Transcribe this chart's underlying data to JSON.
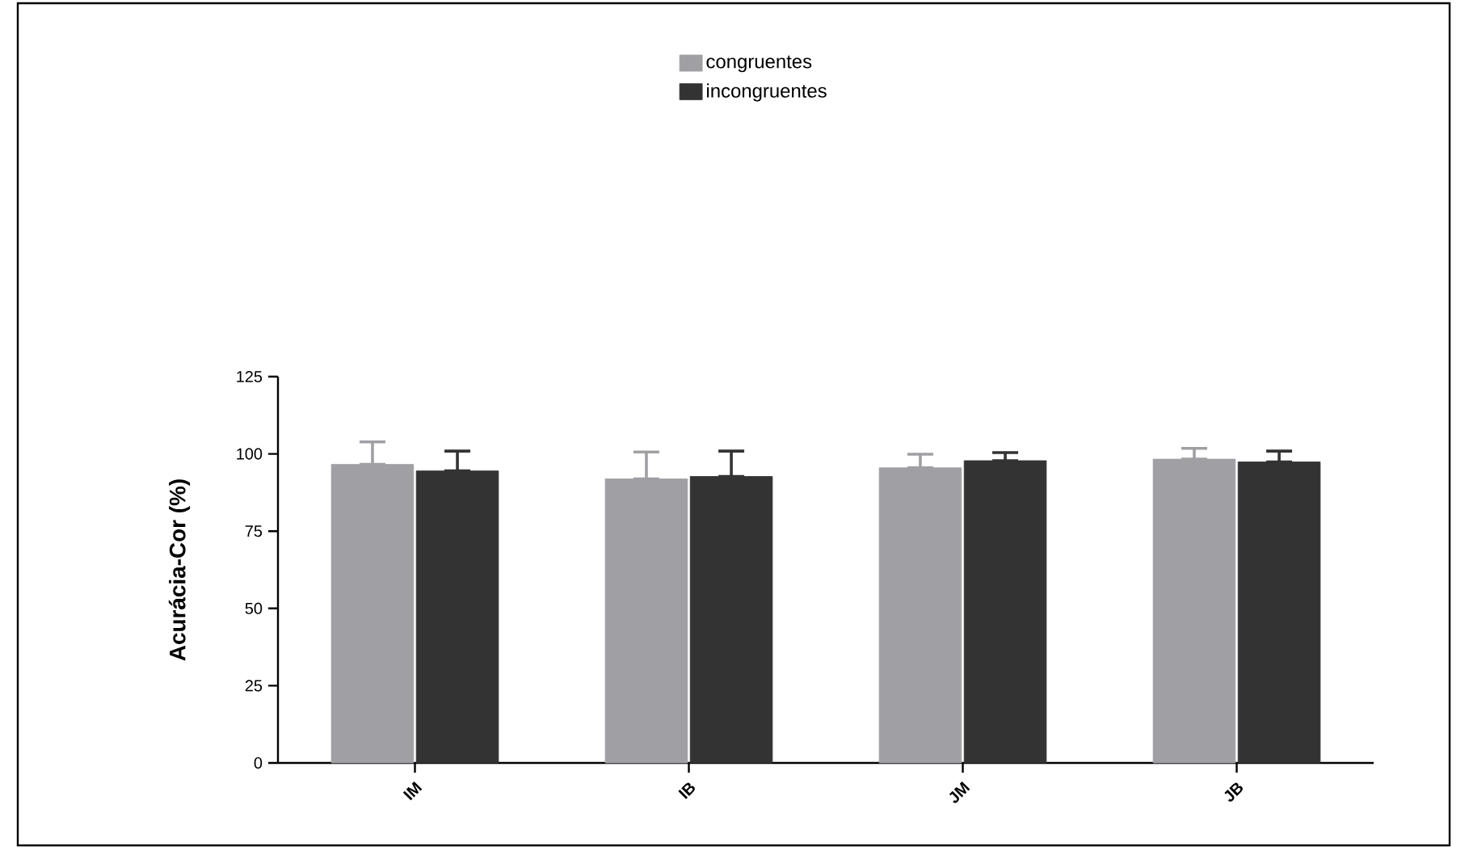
{
  "chart_data": {
    "type": "bar",
    "ylabel": "Acurácia-Cor (%)",
    "categories": [
      "IM",
      "IB",
      "JM",
      "JB"
    ],
    "series": [
      {
        "name": "congruentes",
        "color": "#a0a0a4",
        "values": [
          96.6,
          91.9,
          95.5,
          98.3
        ],
        "errors": [
          [
            96.6,
            103.9
          ],
          [
            91.9,
            100.6
          ],
          [
            95.5,
            99.9
          ],
          [
            98.3,
            101.8
          ]
        ]
      },
      {
        "name": "incongruentes",
        "color": "#333333",
        "values": [
          94.5,
          92.7,
          97.8,
          97.4
        ],
        "errors": [
          [
            94.5,
            100.9
          ],
          [
            92.7,
            100.9
          ],
          [
            97.8,
            100.4
          ],
          [
            97.4,
            100.9
          ]
        ]
      }
    ],
    "ylim": [
      0,
      125
    ],
    "yticks": [
      0,
      25,
      50,
      75,
      100,
      125
    ],
    "grid": false,
    "legend": "top"
  }
}
